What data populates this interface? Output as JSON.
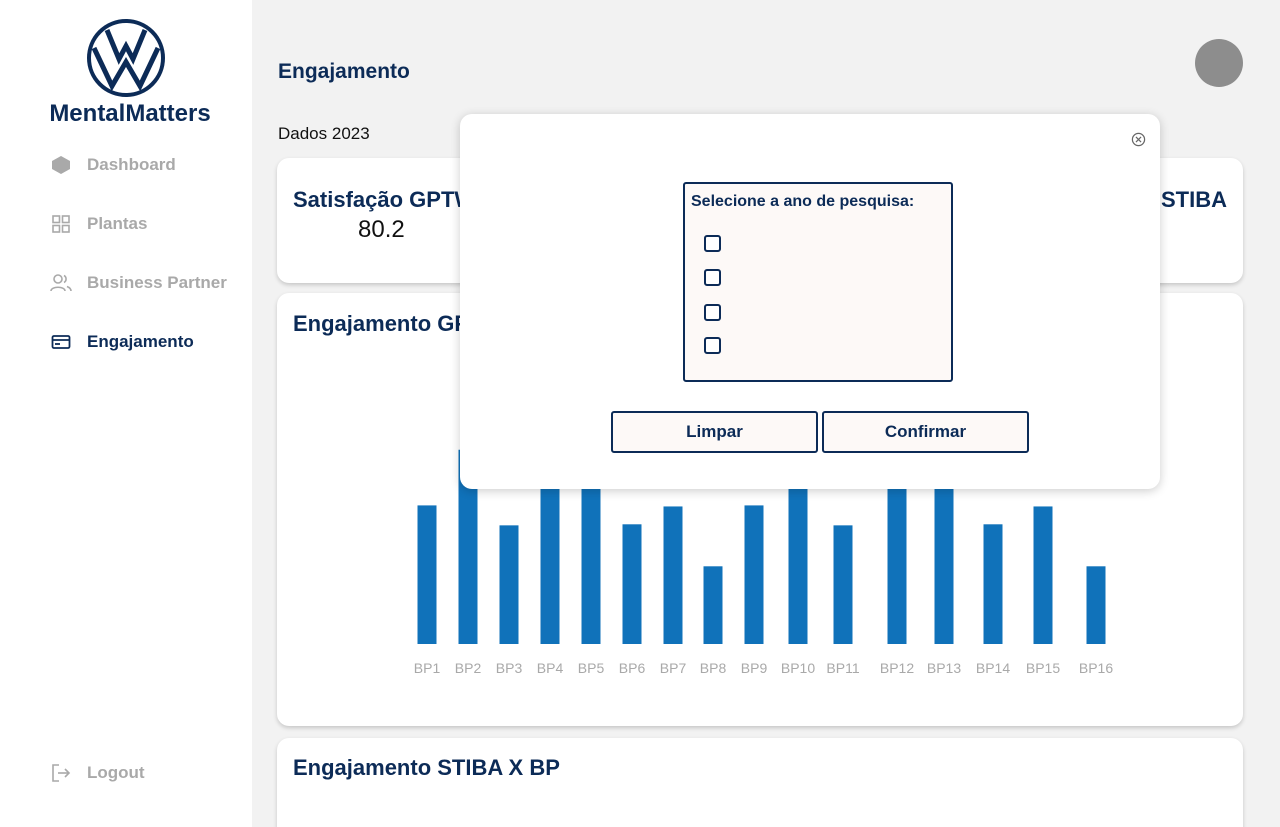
{
  "sidebar": {
    "brand": "MentalMatters",
    "items": [
      {
        "label": "Dashboard",
        "icon": "layers-icon",
        "active": false
      },
      {
        "label": "Plantas",
        "icon": "grid-icon",
        "active": false
      },
      {
        "label": "Business Partner",
        "icon": "users-icon",
        "active": false
      },
      {
        "label": "Engajamento",
        "icon": "card-icon",
        "active": true
      }
    ],
    "logout": "Logout"
  },
  "header": {
    "title": "Engajamento",
    "year_label": "Dados 2023"
  },
  "stats": {
    "left_title": "Satisfação GPTW",
    "left_value": "80.2",
    "right_title": "STIBA"
  },
  "chart_card": {
    "title": "Engajamento GPTW X BP"
  },
  "bottom_card": {
    "title": "Engajamento STIBA X BP"
  },
  "modal": {
    "select_label": "Selecione a ano de pesquisa:",
    "checkbox_count": 4,
    "clear_label": "Limpar",
    "confirm_label": "Confirmar"
  },
  "colors": {
    "primary": "#0c2b57",
    "bar": "#1072ba",
    "muted": "#a9a9a9",
    "background": "#f2f2f2"
  },
  "chart_data": {
    "type": "bar",
    "categories": [
      "BP1",
      "BP2",
      "BP3",
      "BP4",
      "BP5",
      "BP6",
      "BP7",
      "BP8",
      "BP9",
      "BP10",
      "BP11",
      "BP12",
      "BP13",
      "BP14",
      "BP15",
      "BP16"
    ],
    "values": [
      132,
      185,
      113,
      165,
      148,
      114,
      131,
      74,
      132,
      170,
      113,
      165,
      148,
      114,
      131,
      74
    ],
    "title": "",
    "xlabel": "",
    "ylabel": "",
    "ylim": [
      0,
      200
    ]
  }
}
